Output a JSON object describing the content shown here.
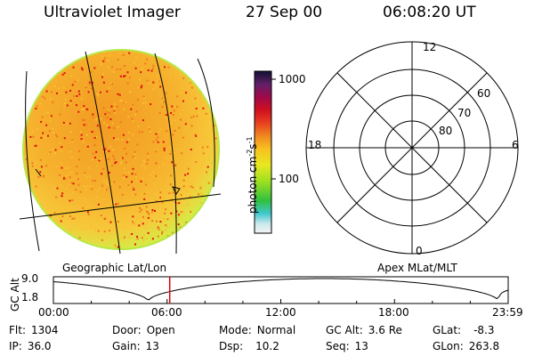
{
  "header": {
    "title": "Ultraviolet Imager",
    "date": "27 Sep 00",
    "time": "06:08:20 UT"
  },
  "colorbar": {
    "label_main": "photon cm",
    "label_exp1": "-2",
    "label_mid": "s",
    "label_exp2": "-1",
    "ticks": [
      "1000",
      "100"
    ]
  },
  "polar_plot": {
    "mlt_labels": [
      "12",
      "18",
      "6",
      "0"
    ],
    "lat_labels": [
      "60",
      "70",
      "80"
    ]
  },
  "projection_labels": {
    "left": "Geographic Lat/Lon",
    "right": "Apex MLat/MLT"
  },
  "altitude_plot": {
    "axis_label": "GC Alt",
    "y_ticks": [
      "9.0",
      "1.8"
    ],
    "x_ticks": [
      "00:00",
      "06:00",
      "12:00",
      "18:00",
      "23:59"
    ],
    "cursor_time": "06:08:20"
  },
  "info": {
    "flt_label": "Flt:",
    "flt_value": "1304",
    "ip_label": "IP:",
    "ip_value": "36.0",
    "door_label": "Door:",
    "door_value": "Open",
    "gain_label": "Gain:",
    "gain_value": "13",
    "mode_label": "Mode:",
    "mode_value": "Normal",
    "dsp_label": "Dsp:",
    "dsp_value": "10.2",
    "gcalt_label": "GC Alt:",
    "gcalt_value": "3.6 Re",
    "seq_label": "Seq:",
    "seq_value": "13",
    "glat_label": "GLat:",
    "glat_value": "-8.3",
    "glon_label": "GLon:",
    "glon_value": "263.8"
  },
  "colors": {
    "disk_dense": "#e01010",
    "disk_mid": "#f07820",
    "disk_bright": "#f8c030",
    "disk_edge": "#ccee44",
    "cursor": "#dd0000"
  }
}
